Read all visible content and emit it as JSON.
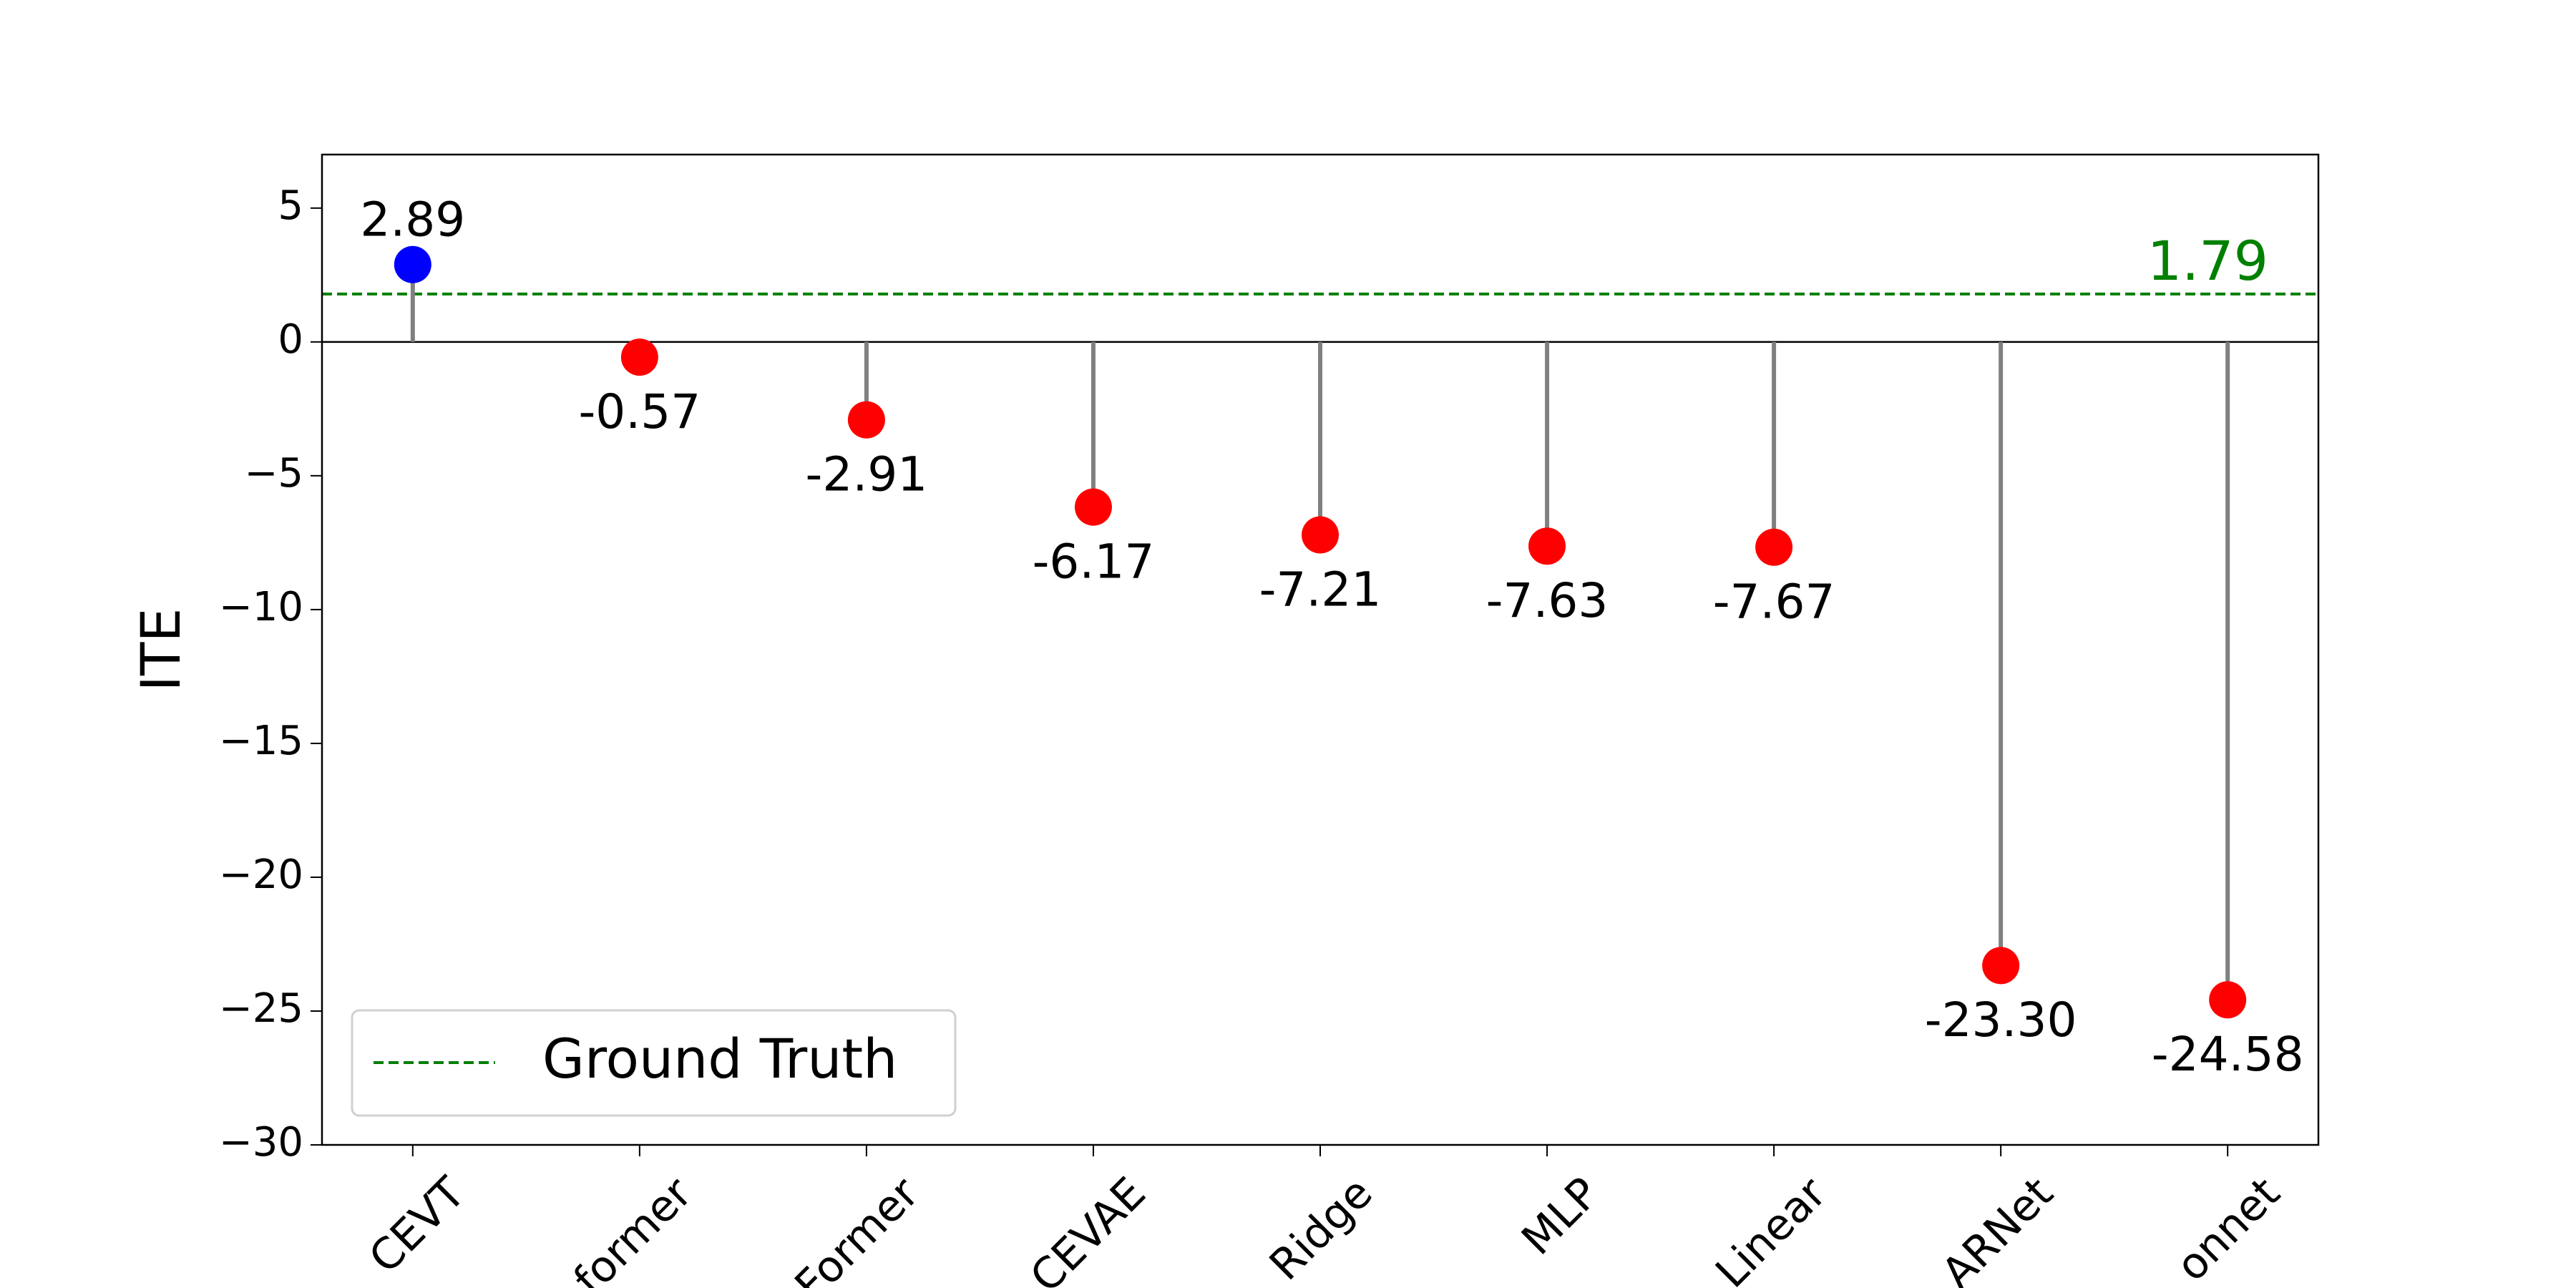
{
  "chart_data": {
    "type": "stem",
    "ylabel": "ITE",
    "categories": [
      "CEVT",
      "former",
      "Former",
      "CEVAE",
      "Ridge",
      "MLP",
      "Linear",
      "ARNet",
      "onnet"
    ],
    "values": [
      2.89,
      -0.57,
      -2.91,
      -6.17,
      -7.21,
      -7.63,
      -7.67,
      -23.3,
      -24.58
    ],
    "value_labels": [
      "2.89",
      "-0.57",
      "-2.91",
      "-6.17",
      "-7.21",
      "-7.63",
      "-7.67",
      "-23.30",
      "-24.58"
    ],
    "colors": [
      "#0000ff",
      "#ff0000",
      "#ff0000",
      "#ff0000",
      "#ff0000",
      "#ff0000",
      "#ff0000",
      "#ff0000",
      "#ff0000"
    ],
    "stem_color": "#808080",
    "reference": {
      "name": "Ground Truth",
      "value": 1.79,
      "color": "#008000"
    },
    "ylim": [
      -30,
      7
    ],
    "yticks": [
      {
        "value": -30,
        "label": "−30"
      },
      {
        "value": -25,
        "label": "−25"
      },
      {
        "value": -20,
        "label": "−20"
      },
      {
        "value": -15,
        "label": "−15"
      },
      {
        "value": -10,
        "label": "−10"
      },
      {
        "value": -5,
        "label": "−5"
      },
      0,
      5
    ],
    "legend": "lower left"
  }
}
